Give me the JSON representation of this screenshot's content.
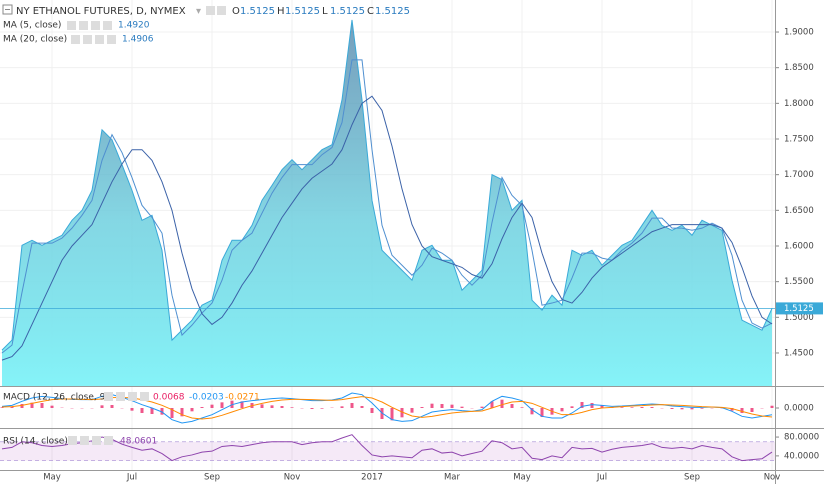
{
  "chart_data": [
    {
      "type": "area",
      "title": "NY ETHANOL FUTURES, D, NYMEX",
      "ohlc": [
        {
          "key": "O",
          "value": 1.5125
        },
        {
          "key": "H",
          "value": 1.5125
        },
        {
          "key": "L",
          "value": 1.5125
        },
        {
          "key": "C",
          "value": 1.5125
        }
      ],
      "categories": [
        null,
        null,
        null,
        null,
        null,
        "May",
        null,
        null,
        null,
        null,
        null,
        null,
        null,
        "Jul",
        null,
        null,
        null,
        null,
        null,
        null,
        null,
        "Sep",
        null,
        null,
        null,
        null,
        null,
        null,
        null,
        "Nov",
        null,
        null,
        null,
        null,
        null,
        null,
        null,
        "2017",
        null,
        null,
        null,
        null,
        null,
        null,
        null,
        "Mar",
        null,
        null,
        null,
        null,
        null,
        null,
        "May",
        null,
        null,
        null,
        null,
        null,
        null,
        null,
        "Jul",
        null,
        null,
        null,
        null,
        null,
        null,
        null,
        null,
        "Sep",
        null,
        null,
        null,
        null,
        null,
        null,
        null,
        "Nov"
      ],
      "values": [
        1.454,
        1.468,
        1.601,
        1.608,
        1.601,
        1.608,
        1.615,
        1.636,
        1.65,
        1.678,
        1.763,
        1.749,
        1.714,
        1.678,
        1.636,
        1.643,
        1.594,
        1.468,
        1.482,
        1.496,
        1.517,
        1.524,
        1.58,
        1.608,
        1.608,
        1.629,
        1.664,
        1.685,
        1.707,
        1.721,
        1.707,
        1.721,
        1.735,
        1.742,
        1.805,
        1.917,
        1.805,
        1.664,
        1.594,
        1.58,
        1.566,
        1.552,
        1.594,
        1.601,
        1.58,
        1.58,
        1.538,
        1.552,
        1.566,
        1.7,
        1.693,
        1.65,
        1.664,
        1.524,
        1.51,
        1.531,
        1.517,
        1.594,
        1.587,
        1.594,
        1.573,
        1.587,
        1.601,
        1.608,
        1.629,
        1.65,
        1.629,
        1.622,
        1.629,
        1.615,
        1.636,
        1.629,
        1.622,
        1.552,
        1.496,
        1.489,
        1.482,
        1.5125
      ],
      "color": "#3aa9d8",
      "series": [
        {
          "name": "MA (5, close)",
          "color": "#4f8fd0",
          "last": {
            "value": 1.492,
            "label": "1.4920"
          },
          "values": [
            1.45,
            1.461,
            1.535,
            1.604,
            1.604,
            1.604,
            1.611,
            1.625,
            1.643,
            1.664,
            1.72,
            1.756,
            1.731,
            1.696,
            1.657,
            1.64,
            1.618,
            1.531,
            1.475,
            1.489,
            1.506,
            1.52,
            1.552,
            1.594,
            1.608,
            1.618,
            1.646,
            1.674,
            1.696,
            1.714,
            1.714,
            1.714,
            1.728,
            1.738,
            1.773,
            1.861,
            1.861,
            1.735,
            1.629,
            1.587,
            1.573,
            1.559,
            1.573,
            1.597,
            1.59,
            1.58,
            1.559,
            1.545,
            1.559,
            1.633,
            1.696,
            1.671,
            1.657,
            1.594,
            1.517,
            1.52,
            1.524,
            1.555,
            1.59,
            1.59,
            1.583,
            1.58,
            1.594,
            1.604,
            1.618,
            1.639,
            1.639,
            1.625,
            1.625,
            1.622,
            1.625,
            1.632,
            1.625,
            1.587,
            1.524,
            1.492,
            1.485,
            1.492
          ]
        },
        {
          "name": "MA (20, close)",
          "color": "#3b62a8",
          "last": {
            "value": 1.4906,
            "label": "1.4906"
          },
          "values": [
            1.44,
            1.445,
            1.46,
            1.49,
            1.52,
            1.55,
            1.58,
            1.6,
            1.615,
            1.63,
            1.66,
            1.69,
            1.715,
            1.735,
            1.735,
            1.72,
            1.69,
            1.65,
            1.59,
            1.54,
            1.505,
            1.49,
            1.5,
            1.52,
            1.545,
            1.565,
            1.59,
            1.615,
            1.64,
            1.66,
            1.68,
            1.695,
            1.705,
            1.715,
            1.735,
            1.77,
            1.8,
            1.81,
            1.79,
            1.74,
            1.68,
            1.63,
            1.6,
            1.585,
            1.58,
            1.575,
            1.57,
            1.56,
            1.555,
            1.575,
            1.61,
            1.64,
            1.66,
            1.64,
            1.59,
            1.55,
            1.525,
            1.52,
            1.535,
            1.555,
            1.57,
            1.58,
            1.59,
            1.6,
            1.61,
            1.62,
            1.625,
            1.63,
            1.63,
            1.63,
            1.63,
            1.63,
            1.625,
            1.605,
            1.57,
            1.53,
            1.5,
            1.4906
          ]
        }
      ],
      "ylim": [
        1.4037,
        1.9449
      ],
      "yticks": [
        {
          "value": 1.45,
          "label": "1.4500"
        },
        {
          "value": 1.5,
          "label": "1.5000"
        },
        {
          "value": 1.55,
          "label": "1.5500"
        },
        {
          "value": 1.6,
          "label": "1.6000"
        },
        {
          "value": 1.65,
          "label": "1.6500"
        },
        {
          "value": 1.7,
          "label": "1.7000"
        },
        {
          "value": 1.75,
          "label": "1.7500"
        },
        {
          "value": 1.8,
          "label": "1.8000"
        },
        {
          "value": 1.85,
          "label": "1.8500"
        },
        {
          "value": 1.9,
          "label": "1.9000"
        }
      ],
      "grid": true
    },
    {
      "type": "macd",
      "title": "MACD (12, 26, close, 9)",
      "series": [
        {
          "color": "#e91e63",
          "values": [
            0.002,
            0.004,
            0.012,
            0.016,
            0.015,
            0.007,
            0.001,
            -0.001,
            -0.001,
            0,
            0.008,
            0.009,
            0,
            -0.008,
            -0.015,
            -0.018,
            -0.02,
            -0.03,
            -0.025,
            -0.01,
            0.003,
            0.01,
            0.017,
            0.022,
            0.02,
            0.015,
            0.011,
            0.008,
            0.006,
            0.002,
            -0.001,
            -0.003,
            -0.002,
            0.001,
            0.005,
            0.015,
            0.006,
            -0.015,
            -0.033,
            -0.037,
            -0.028,
            -0.014,
            0.003,
            0.013,
            0.012,
            0.01,
            0.004,
            0,
            0.004,
            0.02,
            0.025,
            0.012,
            0.002,
            -0.019,
            -0.027,
            -0.02,
            -0.01,
            0.005,
            0.018,
            0.015,
            0.008,
            0.003,
            0.002,
            0.002,
            0.003,
            0.003,
            0,
            -0.003,
            -0.004,
            -0.004,
            -0.002,
            0,
            -0.001,
            -0.008,
            -0.015,
            -0.012,
            -0.001,
            0.0068
          ]
        },
        {
          "color": "#2196f3",
          "values": [
            0.005,
            0.008,
            0.02,
            0.03,
            0.035,
            0.032,
            0.028,
            0.026,
            0.025,
            0.025,
            0.035,
            0.04,
            0.032,
            0.022,
            0.01,
            0.0,
            -0.012,
            -0.035,
            -0.045,
            -0.04,
            -0.03,
            -0.02,
            -0.005,
            0.01,
            0.018,
            0.022,
            0.025,
            0.028,
            0.03,
            0.028,
            0.025,
            0.022,
            0.022,
            0.024,
            0.03,
            0.045,
            0.04,
            0.015,
            -0.015,
            -0.035,
            -0.04,
            -0.038,
            -0.025,
            -0.012,
            -0.008,
            -0.005,
            -0.008,
            -0.01,
            -0.005,
            0.02,
            0.035,
            0.03,
            0.022,
            -0.005,
            -0.025,
            -0.03,
            -0.03,
            -0.015,
            0.005,
            0.01,
            0.008,
            0.005,
            0.006,
            0.008,
            0.01,
            0.012,
            0.01,
            0.006,
            0.004,
            0.002,
            0.002,
            0.003,
            0.001,
            -0.01,
            -0.025,
            -0.03,
            -0.025,
            -0.0203
          ]
        },
        {
          "color": "#ff8a00",
          "values": [
            0.003,
            0.004,
            0.008,
            0.014,
            0.02,
            0.025,
            0.027,
            0.027,
            0.026,
            0.025,
            0.027,
            0.031,
            0.032,
            0.03,
            0.025,
            0.018,
            0.008,
            -0.005,
            -0.02,
            -0.03,
            -0.033,
            -0.03,
            -0.022,
            -0.012,
            -0.002,
            0.007,
            0.014,
            0.02,
            0.024,
            0.026,
            0.026,
            0.025,
            0.024,
            0.023,
            0.025,
            0.03,
            0.034,
            0.03,
            0.018,
            0.002,
            -0.012,
            -0.024,
            -0.028,
            -0.025,
            -0.02,
            -0.015,
            -0.012,
            -0.01,
            -0.009,
            0.0,
            0.01,
            0.018,
            0.02,
            0.014,
            0.002,
            -0.01,
            -0.02,
            -0.02,
            -0.013,
            -0.005,
            0.0,
            0.002,
            0.004,
            0.006,
            0.007,
            0.009,
            0.01,
            0.009,
            0.008,
            0.006,
            0.004,
            0.003,
            0.002,
            -0.002,
            -0.01,
            -0.018,
            -0.024,
            -0.0271
          ]
        }
      ],
      "ylim": [
        -0.06,
        0.06
      ],
      "yticks": [
        {
          "value": 0,
          "label": "0.0000"
        }
      ]
    },
    {
      "type": "rsi",
      "title": "RSI (14, close)",
      "color": "#8e44ad",
      "values": [
        55,
        58,
        70,
        68,
        62,
        60,
        62,
        66,
        68,
        72,
        80,
        75,
        65,
        58,
        52,
        55,
        45,
        30,
        38,
        42,
        48,
        50,
        60,
        62,
        60,
        64,
        68,
        70,
        70,
        70,
        64,
        68,
        70,
        70,
        78,
        85,
        62,
        42,
        38,
        40,
        38,
        36,
        52,
        55,
        46,
        48,
        40,
        45,
        50,
        72,
        68,
        55,
        58,
        35,
        32,
        40,
        36,
        58,
        55,
        56,
        48,
        54,
        58,
        60,
        62,
        66,
        58,
        56,
        58,
        55,
        62,
        58,
        55,
        38,
        30,
        32,
        34,
        48.0601
      ],
      "bands": [
        30,
        70
      ],
      "ylim": [
        10,
        95
      ],
      "yticks": [
        {
          "value": 40,
          "label": "40.0000"
        },
        {
          "value": 80,
          "label": "80.0000"
        }
      ]
    }
  ]
}
